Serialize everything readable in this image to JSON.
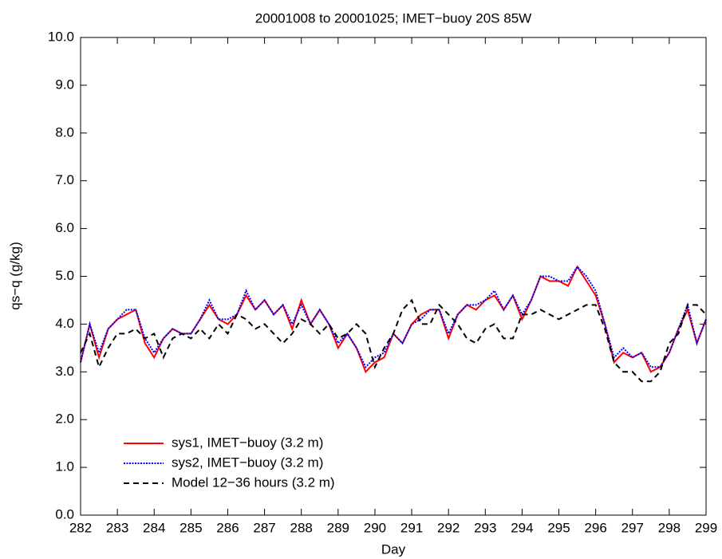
{
  "chart_data": {
    "type": "line",
    "title": "20001008 to 20001025; IMET−buoy 20S 85W",
    "x_label": "Day",
    "y_label": "qs−q (g/kg)",
    "xlim": [
      282,
      299
    ],
    "ylim": [
      0,
      10
    ],
    "xticks": [
      282,
      283,
      284,
      285,
      286,
      287,
      288,
      289,
      290,
      291,
      292,
      293,
      294,
      295,
      296,
      297,
      298,
      299
    ],
    "yticks": [
      {
        "value": 0,
        "label": "0.0"
      },
      {
        "value": 1,
        "label": "1.0"
      },
      {
        "value": 2,
        "label": "2.0"
      },
      {
        "value": 3,
        "label": "3.0"
      },
      {
        "value": 4,
        "label": "4.0"
      },
      {
        "value": 5,
        "label": "5.0"
      },
      {
        "value": 6,
        "label": "6.0"
      },
      {
        "value": 7,
        "label": "7.0"
      },
      {
        "value": 8,
        "label": "8.0"
      },
      {
        "value": 9,
        "label": "9.0"
      },
      {
        "value": 10,
        "label": "10.0"
      }
    ],
    "legend": "lower left",
    "x": [
      282,
      282.25,
      282.5,
      282.75,
      283,
      283.25,
      283.5,
      283.75,
      284,
      284.25,
      284.5,
      284.75,
      285,
      285.25,
      285.5,
      285.75,
      286,
      286.25,
      286.5,
      286.75,
      287,
      287.25,
      287.5,
      287.75,
      288,
      288.25,
      288.5,
      288.75,
      289,
      289.25,
      289.5,
      289.75,
      290,
      290.25,
      290.5,
      290.75,
      291,
      291.25,
      291.5,
      291.75,
      292,
      292.25,
      292.5,
      292.75,
      293,
      293.25,
      293.5,
      293.75,
      294,
      294.25,
      294.5,
      294.75,
      295,
      295.25,
      295.5,
      295.75,
      296,
      296.25,
      296.5,
      296.75,
      297,
      297.25,
      297.5,
      297.75,
      298,
      298.25,
      298.5,
      298.75,
      299
    ],
    "series": [
      {
        "name": "sys1, IMET−buoy (3.2 m)",
        "color": "#ff0000",
        "dash": "none",
        "values": [
          3.2,
          4.0,
          3.3,
          3.9,
          4.1,
          4.2,
          4.3,
          3.6,
          3.3,
          3.7,
          3.9,
          3.8,
          3.8,
          4.1,
          4.4,
          4.1,
          4.0,
          4.2,
          4.6,
          4.3,
          4.5,
          4.2,
          4.4,
          3.9,
          4.5,
          4.0,
          4.3,
          4.0,
          3.5,
          3.8,
          3.5,
          3.0,
          3.2,
          3.3,
          3.8,
          3.6,
          4.0,
          4.2,
          4.3,
          4.3,
          3.7,
          4.2,
          4.4,
          4.3,
          4.5,
          4.6,
          4.3,
          4.6,
          4.1,
          4.5,
          5.0,
          4.9,
          4.9,
          4.8,
          5.2,
          4.9,
          4.6,
          4.0,
          3.2,
          3.4,
          3.3,
          3.4,
          3.0,
          3.1,
          3.4,
          3.9,
          4.3,
          3.6,
          4.1
        ]
      },
      {
        "name": "sys2, IMET−buoy (3.2 m)",
        "color": "#0000ff",
        "dash": "2,1.5",
        "values": [
          3.2,
          4.0,
          3.4,
          3.9,
          4.1,
          4.3,
          4.3,
          3.7,
          3.4,
          3.7,
          3.9,
          3.8,
          3.8,
          4.1,
          4.5,
          4.1,
          4.1,
          4.2,
          4.7,
          4.3,
          4.5,
          4.2,
          4.4,
          4.0,
          4.4,
          4.0,
          4.3,
          4.0,
          3.6,
          3.8,
          3.5,
          3.1,
          3.3,
          3.4,
          3.8,
          3.6,
          4.0,
          4.1,
          4.3,
          4.3,
          3.8,
          4.2,
          4.4,
          4.4,
          4.5,
          4.7,
          4.3,
          4.6,
          4.2,
          4.5,
          5.0,
          5.0,
          4.9,
          4.9,
          5.2,
          5.0,
          4.7,
          4.0,
          3.3,
          3.5,
          3.3,
          3.4,
          3.1,
          3.1,
          3.4,
          3.9,
          4.4,
          3.6,
          4.1
        ]
      },
      {
        "name": "Model 12−36 hours (3.2 m)",
        "color": "#000000",
        "dash": "7,5",
        "values": [
          3.4,
          3.8,
          3.1,
          3.5,
          3.8,
          3.8,
          3.9,
          3.7,
          3.8,
          3.3,
          3.7,
          3.8,
          3.7,
          3.9,
          3.7,
          4.0,
          3.8,
          4.2,
          4.1,
          3.9,
          4.0,
          3.8,
          3.6,
          3.8,
          4.1,
          4.0,
          3.8,
          4.0,
          3.7,
          3.8,
          4.0,
          3.8,
          3.1,
          3.5,
          3.8,
          4.3,
          4.5,
          4.0,
          4.0,
          4.4,
          4.2,
          4.0,
          3.7,
          3.6,
          3.9,
          4.0,
          3.7,
          3.7,
          4.2,
          4.2,
          4.3,
          4.2,
          4.1,
          4.2,
          4.3,
          4.4,
          4.4,
          3.9,
          3.2,
          3.0,
          3.0,
          2.8,
          2.8,
          3.0,
          3.6,
          3.8,
          4.4,
          4.4,
          4.2
        ]
      }
    ]
  }
}
